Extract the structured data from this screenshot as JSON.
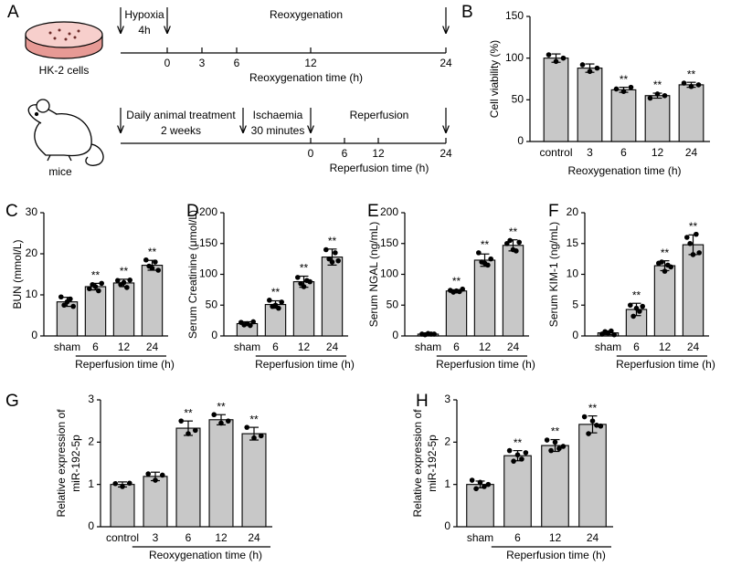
{
  "schematic": {
    "panel": "A",
    "cell_label": "HK-2 cells",
    "mouse_label": "mice",
    "timeline1": {
      "phases": [
        [
          "Hypoxia",
          "4h"
        ],
        [
          "Reoxygenation"
        ]
      ],
      "ticks": [
        0,
        3,
        6,
        12,
        24
      ],
      "axis_label": "Reoxygenation time (h)"
    },
    "timeline2": {
      "phases": [
        [
          "Daily animal treatment",
          "2 weeks"
        ],
        [
          "Ischaemia",
          "30 minutes"
        ],
        [
          "Reperfusion"
        ]
      ],
      "ticks": [
        0,
        6,
        12,
        24
      ],
      "axis_label": "Reperfusion time (h)"
    }
  },
  "chart_data": [
    {
      "type": "bar",
      "panel": "B",
      "ylabel": "Cell viability (%)",
      "xlabel": "Reoxygenation time (h)",
      "bracket": false,
      "color": "#c8c8c8",
      "categories": [
        "control",
        "3",
        "6",
        "12",
        "24"
      ],
      "values": [
        100,
        88,
        62,
        55,
        68
      ],
      "errors": [
        5,
        5,
        3,
        3,
        3
      ],
      "points": [
        [
          104,
          96,
          100
        ],
        [
          92,
          84,
          88
        ],
        [
          63,
          60,
          65
        ],
        [
          52,
          57,
          55
        ],
        [
          70,
          66,
          68
        ]
      ],
      "significance": [
        null,
        null,
        "**",
        "**",
        "**"
      ],
      "ylim": [
        0,
        150
      ],
      "yticks": [
        0,
        50,
        100,
        150
      ]
    },
    {
      "type": "bar",
      "panel": "C",
      "ylabel": "BUN (mmol/L)",
      "xlabel": "Reperfusion time (h)",
      "bracket": true,
      "color": "#c8c8c8",
      "categories": [
        "sham",
        "6",
        "12",
        "24"
      ],
      "values": [
        8.3,
        12,
        12.9,
        17.2
      ],
      "errors": [
        1.1,
        0.8,
        0.9,
        1.2
      ],
      "points": [
        [
          9.5,
          7.5,
          8.3,
          9,
          7.2
        ],
        [
          11.5,
          12.5,
          12,
          11,
          12.8
        ],
        [
          13.5,
          12.5,
          13,
          11.8,
          13.6
        ],
        [
          18.5,
          17,
          16.5,
          18,
          16
        ]
      ],
      "significance": [
        null,
        "**",
        "**",
        "**"
      ],
      "ylim": [
        0,
        30
      ],
      "yticks": [
        0,
        10,
        20,
        30
      ]
    },
    {
      "type": "bar",
      "panel": "D",
      "ylabel": "Serum Creatinine (μmol/L)",
      "xlabel": "Reperfusion time (h)",
      "bracket": true,
      "color": "#c8c8c8",
      "categories": [
        "sham",
        "6",
        "12",
        "24"
      ],
      "values": [
        20,
        51,
        88,
        128
      ],
      "errors": [
        3,
        6,
        9,
        13
      ],
      "points": [
        [
          22,
          18,
          20,
          17,
          23
        ],
        [
          58,
          48,
          50,
          45,
          55
        ],
        [
          95,
          85,
          80,
          90,
          88
        ],
        [
          140,
          125,
          120,
          135,
          122
        ]
      ],
      "significance": [
        null,
        "**",
        "**",
        "**"
      ],
      "ylim": [
        0,
        200
      ],
      "yticks": [
        0,
        50,
        100,
        150,
        200
      ]
    },
    {
      "type": "bar",
      "panel": "E",
      "ylabel": "Serum NGAL (ng/mL)",
      "xlabel": "Reperfusion time (h)",
      "bracket": true,
      "color": "#c8c8c8",
      "categories": [
        "sham",
        "6",
        "12",
        "24"
      ],
      "values": [
        3,
        73,
        123,
        147
      ],
      "errors": [
        1,
        2,
        10,
        9
      ],
      "points": [
        [
          3,
          2,
          4,
          3,
          3
        ],
        [
          74,
          71,
          73,
          72,
          76
        ],
        [
          135,
          120,
          118,
          115,
          125
        ],
        [
          150,
          155,
          140,
          138,
          152
        ]
      ],
      "significance": [
        null,
        "**",
        "**",
        "**"
      ],
      "ylim": [
        0,
        200
      ],
      "yticks": [
        0,
        50,
        100,
        150,
        200
      ]
    },
    {
      "type": "bar",
      "panel": "F",
      "ylabel": "Serum KIM-1 (ng/mL)",
      "xlabel": "Reperfusion time (h)",
      "bracket": true,
      "color": "#c8c8c8",
      "categories": [
        "sham",
        "6",
        "12",
        "24"
      ],
      "values": [
        0.5,
        4.3,
        11.4,
        14.8
      ],
      "errors": [
        0.3,
        1,
        0.8,
        1.6
      ],
      "points": [
        [
          0.3,
          0.7,
          0.5,
          0.8,
          0.2
        ],
        [
          5,
          3.2,
          4.5,
          4,
          4.8
        ],
        [
          11.8,
          12,
          10.5,
          11.5,
          11.2
        ],
        [
          16,
          15,
          13.2,
          16.5,
          13.5
        ]
      ],
      "significance": [
        null,
        "**",
        "**",
        "**"
      ],
      "ylim": [
        0,
        20
      ],
      "yticks": [
        0,
        5,
        10,
        15,
        20
      ]
    },
    {
      "type": "bar",
      "panel": "G",
      "ylabel": [
        "Relative expression of",
        "miR-192-5p"
      ],
      "xlabel": "Reoxygenation time (h)",
      "bracket": true,
      "color": "#c8c8c8",
      "categories": [
        "control",
        "3",
        "6",
        "12",
        "24"
      ],
      "values": [
        1.0,
        1.19,
        2.33,
        2.53,
        2.2
      ],
      "errors": [
        0.06,
        0.1,
        0.17,
        0.12,
        0.15
      ],
      "points": [
        [
          1.02,
          0.95,
          1.03
        ],
        [
          1.25,
          1.1,
          1.22
        ],
        [
          2.5,
          2.2,
          2.28
        ],
        [
          2.65,
          2.45,
          2.5
        ],
        [
          2.35,
          2.1,
          2.15
        ]
      ],
      "significance": [
        null,
        null,
        "**",
        "**",
        "**"
      ],
      "ylim": [
        0,
        3
      ],
      "yticks": [
        0,
        1,
        2,
        3
      ]
    },
    {
      "type": "bar",
      "panel": "H",
      "ylabel": [
        "Relative expression of",
        "miR-192-5p"
      ],
      "xlabel": "Reperfusion time (h)",
      "bracket": true,
      "color": "#c8c8c8",
      "categories": [
        "sham",
        "6",
        "12",
        "24"
      ],
      "values": [
        1.0,
        1.68,
        1.92,
        2.42
      ],
      "errors": [
        0.08,
        0.12,
        0.14,
        0.2
      ],
      "points": [
        [
          1.1,
          0.9,
          1.05,
          0.95,
          1.0
        ],
        [
          1.8,
          1.55,
          1.7,
          1.6,
          1.75
        ],
        [
          2.05,
          1.8,
          2.0,
          1.85,
          1.9
        ],
        [
          2.6,
          2.2,
          2.5,
          2.4,
          2.38
        ]
      ],
      "significance": [
        null,
        "**",
        "**",
        "**"
      ],
      "ylim": [
        0,
        3
      ],
      "yticks": [
        0,
        1,
        2,
        3
      ]
    }
  ]
}
